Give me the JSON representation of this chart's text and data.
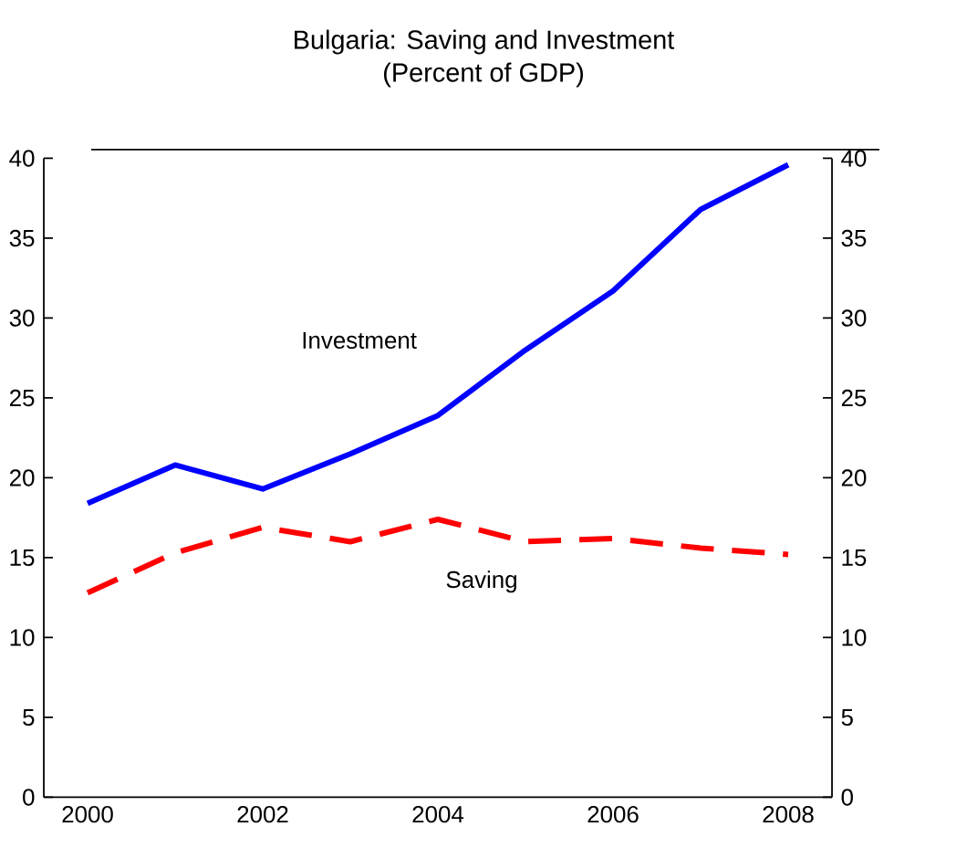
{
  "chart_data": {
    "type": "line",
    "title": "Bulgaria: Saving and Investment",
    "subtitle": "(Percent of GDP)",
    "categories": [
      "2000",
      null,
      "2002",
      null,
      "2004",
      null,
      "2006",
      null,
      "2008"
    ],
    "series": [
      {
        "name": "Investment",
        "color": "#0000ff",
        "line_style": "solid",
        "values": [
          18.4,
          20.8,
          19.3,
          21.5,
          23.9,
          28.0,
          31.7,
          36.8,
          39.6
        ]
      },
      {
        "name": "Saving",
        "color": "#ff0000",
        "line_style": "dashed",
        "values": [
          12.8,
          15.3,
          16.9,
          16.0,
          17.4,
          16.0,
          16.2,
          15.6,
          15.2
        ]
      }
    ],
    "ylim": [
      0,
      40
    ],
    "yticks": [
      0,
      5,
      10,
      15,
      20,
      25,
      30,
      35,
      40
    ],
    "y2lim": [
      0,
      40
    ],
    "y2ticks": [
      0,
      5,
      10,
      15,
      20,
      25,
      30,
      35,
      40
    ],
    "grid": false,
    "legend": false,
    "marker": "none"
  }
}
